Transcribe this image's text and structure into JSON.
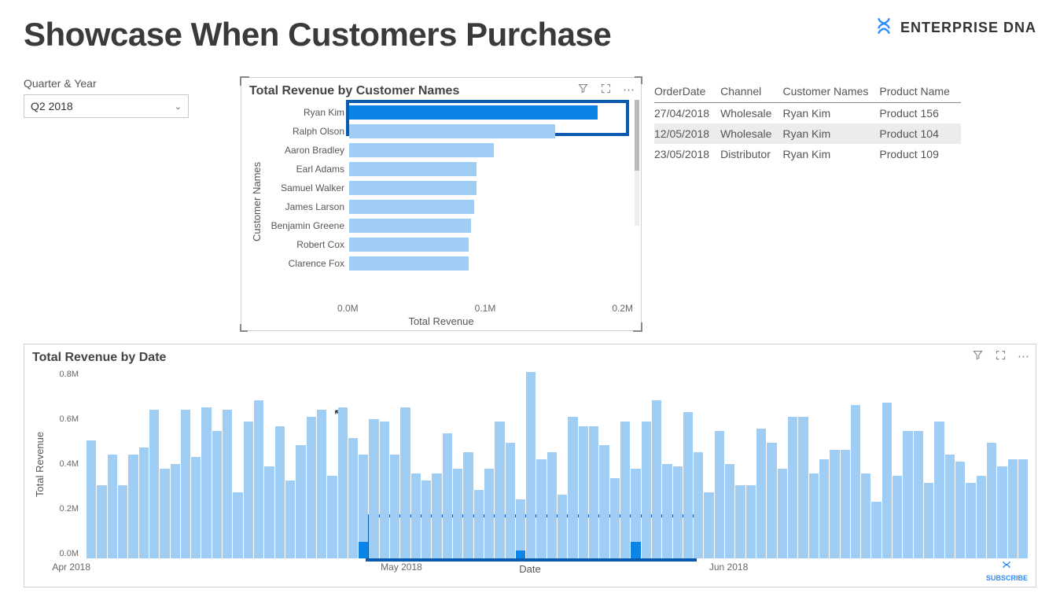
{
  "page": {
    "title": "Showcase When Customers Purchase",
    "brand": "ENTERPRISE DNA",
    "brand_color": "#2d8cff"
  },
  "slicer": {
    "label": "Quarter & Year",
    "value": "Q2 2018"
  },
  "customer_chart": {
    "type": "bar",
    "title": "Total Revenue by Customer Names",
    "y_axis_label": "Customer Names",
    "x_axis_label": "Total Revenue",
    "x_ticks": [
      "0.0M",
      "0.1M",
      "0.2M"
    ],
    "xlim": [
      0,
      0.2
    ],
    "bar_color": "#9fcdf4",
    "highlight_color": "#0b84e8",
    "highlight_border": "#0a5bb0",
    "items": [
      {
        "name": "Ryan Kim",
        "value": 0.175,
        "highlighted": true
      },
      {
        "name": "Ralph Olson",
        "value": 0.145,
        "highlighted": false
      },
      {
        "name": "Aaron Bradley",
        "value": 0.102,
        "highlighted": false
      },
      {
        "name": "Earl Adams",
        "value": 0.09,
        "highlighted": false
      },
      {
        "name": "Samuel Walker",
        "value": 0.09,
        "highlighted": false
      },
      {
        "name": "James Larson",
        "value": 0.088,
        "highlighted": false
      },
      {
        "name": "Benjamin Greene",
        "value": 0.086,
        "highlighted": false
      },
      {
        "name": "Robert Cox",
        "value": 0.084,
        "highlighted": false
      },
      {
        "name": "Clarence Fox",
        "value": 0.084,
        "highlighted": false
      }
    ]
  },
  "orders_table": {
    "columns": [
      "OrderDate",
      "Channel",
      "Customer Names",
      "Product Name"
    ],
    "rows": [
      {
        "cells": [
          "27/04/2018",
          "Wholesale",
          "Ryan Kim",
          "Product 156"
        ],
        "highlighted": false
      },
      {
        "cells": [
          "12/05/2018",
          "Wholesale",
          "Ryan Kim",
          "Product 104"
        ],
        "highlighted": true
      },
      {
        "cells": [
          "23/05/2018",
          "Distributor",
          "Ryan Kim",
          "Product 109"
        ],
        "highlighted": false
      }
    ]
  },
  "date_chart": {
    "type": "bar",
    "title": "Total Revenue by Date",
    "y_axis_label": "Total Revenue",
    "x_axis_label": "Date",
    "y_ticks": [
      "0.8M",
      "0.6M",
      "0.4M",
      "0.2M",
      "0.0M"
    ],
    "ylim": [
      0,
      0.8
    ],
    "x_tick_labels": [
      {
        "label": "Apr 2018",
        "pos_pct": 2
      },
      {
        "label": "May 2018",
        "pos_pct": 35
      },
      {
        "label": "Jun 2018",
        "pos_pct": 68
      }
    ],
    "bar_color": "#9fcdf4",
    "overlay_color": "#0b84e8",
    "highlight_box": {
      "left_pct": 30,
      "width_pct": 35,
      "border": "#0a5bb0"
    },
    "values": [
      0.5,
      0.31,
      0.44,
      0.31,
      0.44,
      0.47,
      0.63,
      0.38,
      0.4,
      0.63,
      0.43,
      0.64,
      0.54,
      0.63,
      0.28,
      0.58,
      0.67,
      0.39,
      0.56,
      0.33,
      0.48,
      0.6,
      0.63,
      0.35,
      0.64,
      0.51,
      0.44,
      0.59,
      0.58,
      0.44,
      0.64,
      0.36,
      0.33,
      0.36,
      0.53,
      0.38,
      0.45,
      0.29,
      0.38,
      0.58,
      0.49,
      0.25,
      0.79,
      0.42,
      0.45,
      0.27,
      0.6,
      0.56,
      0.56,
      0.48,
      0.34,
      0.58,
      0.38,
      0.58,
      0.67,
      0.4,
      0.39,
      0.62,
      0.45,
      0.28,
      0.54,
      0.4,
      0.31,
      0.31,
      0.55,
      0.49,
      0.38,
      0.6,
      0.6,
      0.36,
      0.42,
      0.46,
      0.46,
      0.65,
      0.36,
      0.24,
      0.66,
      0.35,
      0.54,
      0.54,
      0.32,
      0.58,
      0.44,
      0.41,
      0.32,
      0.35,
      0.49,
      0.39,
      0.42,
      0.42
    ],
    "overlays": [
      {
        "index": 26,
        "value": 0.07
      },
      {
        "index": 41,
        "value": 0.035
      },
      {
        "index": 52,
        "value": 0.07
      }
    ],
    "subscribe_label": "SUBSCRIBE"
  }
}
